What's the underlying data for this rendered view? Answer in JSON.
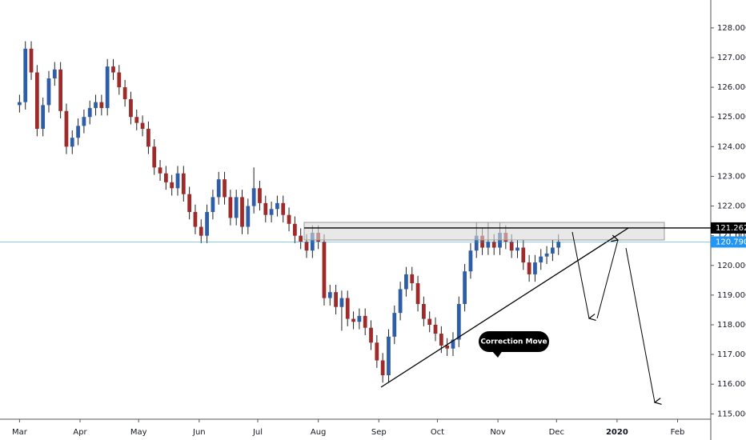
{
  "chart_data": {
    "type": "candlestick",
    "up_color": "#2f5ea8",
    "down_color": "#9e2a2a",
    "wick_color": "#222222",
    "x": [
      0,
      3,
      6,
      9,
      12,
      15,
      18,
      21,
      24,
      27,
      30,
      33,
      36,
      39,
      42,
      45,
      48,
      51,
      54,
      57,
      60,
      63,
      66,
      69,
      72,
      75,
      78,
      81,
      84,
      87,
      90,
      93,
      96,
      99,
      102,
      105,
      108,
      111,
      114,
      117,
      120,
      123,
      126,
      129,
      132,
      135,
      138,
      141,
      144,
      147,
      150,
      153,
      156,
      159,
      162,
      165,
      168,
      171,
      174,
      177,
      180,
      183,
      186,
      189,
      192,
      195,
      198,
      201,
      204,
      207,
      210,
      213,
      216,
      219,
      222,
      225,
      228,
      231,
      234,
      237,
      240,
      243,
      246,
      249,
      252,
      255,
      258,
      261,
      264,
      267,
      270,
      273,
      276
    ],
    "open": [
      125.4,
      125.5,
      127.3,
      126.5,
      124.6,
      125.4,
      126.3,
      126.6,
      125.2,
      124.0,
      124.3,
      124.7,
      125.0,
      125.3,
      125.5,
      125.3,
      126.7,
      126.5,
      126.0,
      125.6,
      125.0,
      124.8,
      124.6,
      124.0,
      123.3,
      123.1,
      122.8,
      122.6,
      123.1,
      122.4,
      121.8,
      121.3,
      121.0,
      121.8,
      122.3,
      122.9,
      122.3,
      121.6,
      122.3,
      121.3,
      122.0,
      122.6,
      122.1,
      121.7,
      121.9,
      122.1,
      121.7,
      121.4,
      121.0,
      120.8,
      120.5,
      121.1,
      120.8,
      118.9,
      119.1,
      118.6,
      118.9,
      118.2,
      118.1,
      118.3,
      117.9,
      117.4,
      116.8,
      116.3,
      117.6,
      118.4,
      119.2,
      119.7,
      119.4,
      118.7,
      118.2,
      118.0,
      117.7,
      117.3,
      117.2,
      117.5,
      118.7,
      119.8,
      120.5,
      121.0,
      120.6,
      120.8,
      120.6,
      121.1,
      120.8,
      120.5,
      120.6,
      120.1,
      119.7,
      120.1,
      120.3,
      120.4,
      120.6
    ],
    "high": [
      125.75,
      127.55,
      127.55,
      126.75,
      125.65,
      126.55,
      126.85,
      126.85,
      125.45,
      124.55,
      124.95,
      125.25,
      125.55,
      125.75,
      125.75,
      126.95,
      126.95,
      126.75,
      126.25,
      125.85,
      125.25,
      125.05,
      124.85,
      124.25,
      123.55,
      123.35,
      123.05,
      123.35,
      123.35,
      122.65,
      122.05,
      121.55,
      122.05,
      122.55,
      123.15,
      123.15,
      122.55,
      122.55,
      122.55,
      122.25,
      123.3,
      122.85,
      122.35,
      122.15,
      122.35,
      122.35,
      121.95,
      121.65,
      121.25,
      121.05,
      121.35,
      121.35,
      121.05,
      119.35,
      119.35,
      119.15,
      119.15,
      118.45,
      118.55,
      118.55,
      118.15,
      117.65,
      117.05,
      117.85,
      118.65,
      119.45,
      119.95,
      119.95,
      119.65,
      118.95,
      118.45,
      118.25,
      117.95,
      117.55,
      117.75,
      118.95,
      120.05,
      120.75,
      121.45,
      121.25,
      121.45,
      121.05,
      121.45,
      121.35,
      121.05,
      120.85,
      120.85,
      120.35,
      120.35,
      120.55,
      120.65,
      120.85,
      121.05
    ],
    "low": [
      125.15,
      125.25,
      126.25,
      124.35,
      124.35,
      125.15,
      126.05,
      124.95,
      123.75,
      123.75,
      124.05,
      124.45,
      124.75,
      125.05,
      125.05,
      125.05,
      126.25,
      125.75,
      125.35,
      124.75,
      124.55,
      124.35,
      123.75,
      123.05,
      122.85,
      122.55,
      122.35,
      122.35,
      122.15,
      121.55,
      121.05,
      120.75,
      120.75,
      121.55,
      122.05,
      122.05,
      121.35,
      121.35,
      121.05,
      121.05,
      121.75,
      121.85,
      121.45,
      121.45,
      121.65,
      121.45,
      121.15,
      120.75,
      120.55,
      120.25,
      120.25,
      120.55,
      118.65,
      118.65,
      118.35,
      117.8,
      117.95,
      117.85,
      117.85,
      117.65,
      117.15,
      116.55,
      116.05,
      116.05,
      117.35,
      118.15,
      118.95,
      119.15,
      118.45,
      117.95,
      117.75,
      117.45,
      117.05,
      116.95,
      116.95,
      117.25,
      118.45,
      119.55,
      120.25,
      120.35,
      120.35,
      120.35,
      120.35,
      120.55,
      120.25,
      120.25,
      119.85,
      119.45,
      119.45,
      119.85,
      120.05,
      120.15,
      120.35
    ],
    "close": [
      125.5,
      127.3,
      126.5,
      124.6,
      125.4,
      126.3,
      126.6,
      125.2,
      124.0,
      124.3,
      124.7,
      125.0,
      125.3,
      125.5,
      125.3,
      126.7,
      126.5,
      126.0,
      125.6,
      125.0,
      124.8,
      124.6,
      124.0,
      123.3,
      123.1,
      122.8,
      122.6,
      123.1,
      122.4,
      121.8,
      121.3,
      121.0,
      121.8,
      122.3,
      122.9,
      122.3,
      121.6,
      122.3,
      121.3,
      122.0,
      122.6,
      122.1,
      121.7,
      121.9,
      122.1,
      121.7,
      121.4,
      121.0,
      120.8,
      120.5,
      121.1,
      120.8,
      118.9,
      119.1,
      118.6,
      118.9,
      118.2,
      118.1,
      118.3,
      117.9,
      117.4,
      116.8,
      116.3,
      117.6,
      118.4,
      119.2,
      119.7,
      119.4,
      118.7,
      118.2,
      118.0,
      117.7,
      117.3,
      117.2,
      117.5,
      118.7,
      119.8,
      120.5,
      121.0,
      120.6,
      120.8,
      120.6,
      121.1,
      120.8,
      120.5,
      120.6,
      120.1,
      119.7,
      120.1,
      120.3,
      120.4,
      120.6,
      120.8
    ],
    "xlim": [
      -10,
      354
    ],
    "ylim": [
      114.82,
      128.94
    ],
    "xticks": [
      {
        "value": 0,
        "label": "Mar"
      },
      {
        "value": 31,
        "label": "Apr"
      },
      {
        "value": 61,
        "label": "May"
      },
      {
        "value": 92,
        "label": "Jun"
      },
      {
        "value": 122,
        "label": "Jul"
      },
      {
        "value": 153,
        "label": "Aug"
      },
      {
        "value": 184,
        "label": "Sep"
      },
      {
        "value": 214,
        "label": "Oct"
      },
      {
        "value": 245,
        "label": "Nov"
      },
      {
        "value": 275,
        "label": "Dec"
      },
      {
        "value": 306,
        "label": "2020"
      },
      {
        "value": 337,
        "label": "Feb"
      }
    ],
    "yticks": [
      {
        "value": 115,
        "label": "115.000"
      },
      {
        "value": 116,
        "label": "116.000"
      },
      {
        "value": 117,
        "label": "117.000"
      },
      {
        "value": 118,
        "label": "118.000"
      },
      {
        "value": 119,
        "label": "119.000"
      },
      {
        "value": 120,
        "label": "120.000"
      },
      {
        "value": 121,
        "label": "121.000"
      },
      {
        "value": 122,
        "label": "122.000"
      },
      {
        "value": 123,
        "label": "123.000"
      },
      {
        "value": 124,
        "label": "124.000"
      },
      {
        "value": 125,
        "label": "125.000"
      },
      {
        "value": 126,
        "label": "126.000"
      },
      {
        "value": 127,
        "label": "127.000"
      },
      {
        "value": 128,
        "label": "128.000"
      }
    ],
    "levels": [
      {
        "value": 121.262,
        "label": "121.262",
        "color": "#000000"
      },
      {
        "value": 120.79,
        "label": "120.790",
        "color": "#2196f3"
      }
    ],
    "annotation": "Correction Move"
  }
}
